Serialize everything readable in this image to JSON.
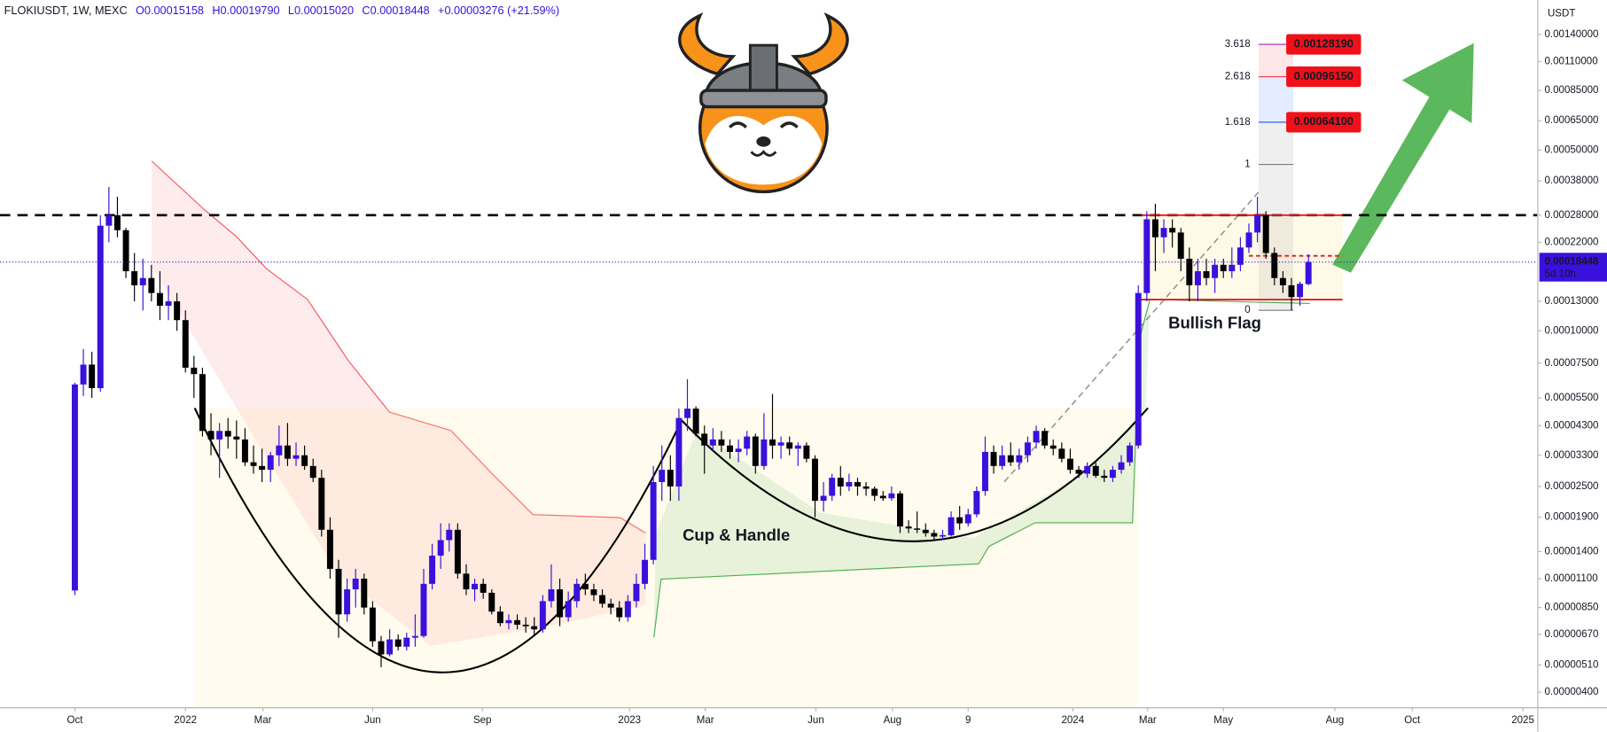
{
  "chart_data": {
    "type": "candlestick",
    "symbol": "FLOKIUSDT, 1W, MEXC",
    "header_values": [
      "O0.00015158",
      "H0.00019790",
      "L0.00015020",
      "C0.00018448",
      "+0.00003276 (+21.59%)"
    ],
    "currency": "USDT",
    "log_scale": true,
    "grid": false,
    "up_color": "#3a10dc",
    "down_color": "#000000",
    "ylim": [
      3.5e-06,
      0.0019
    ],
    "yticks": [
      {
        "value": 0.0014,
        "label": "0.00140000"
      },
      {
        "value": 0.0011,
        "label": "0.00110000"
      },
      {
        "value": 0.00085,
        "label": "0.00085000"
      },
      {
        "value": 0.00065,
        "label": "0.00065000"
      },
      {
        "value": 0.0005,
        "label": "0.00050000"
      },
      {
        "value": 0.00038,
        "label": "0.00038000"
      },
      {
        "value": 0.00028,
        "label": "0.00028000"
      },
      {
        "value": 0.00022,
        "label": "0.00022000"
      },
      {
        "value": 0.00013,
        "label": "0.00013000"
      },
      {
        "value": 0.0001,
        "label": "0.00010000"
      },
      {
        "value": 7.5e-05,
        "label": "0.00007500"
      },
      {
        "value": 5.5e-05,
        "label": "0.00005500"
      },
      {
        "value": 4.3e-05,
        "label": "0.00004300"
      },
      {
        "value": 3.3e-05,
        "label": "0.00003300"
      },
      {
        "value": 2.5e-05,
        "label": "0.00002500"
      },
      {
        "value": 1.9e-05,
        "label": "0.00001900"
      },
      {
        "value": 1.4e-05,
        "label": "0.00001400"
      },
      {
        "value": 1.1e-05,
        "label": "0.00001100"
      },
      {
        "value": 8.5e-06,
        "label": "0.00000850"
      },
      {
        "value": 6.7e-06,
        "label": "0.00000670"
      },
      {
        "value": 5.1e-06,
        "label": "0.00000510"
      },
      {
        "value": 4e-06,
        "label": "0.00000400"
      }
    ],
    "xlim": [
      -8.8,
      171.9
    ],
    "xticks": [
      {
        "value": 0,
        "label": "Oct"
      },
      {
        "value": 13,
        "label": "2022"
      },
      {
        "value": 22.1,
        "label": "Mar"
      },
      {
        "value": 35,
        "label": "Jun"
      },
      {
        "value": 47.9,
        "label": "Sep"
      },
      {
        "value": 65.2,
        "label": "2023"
      },
      {
        "value": 74.1,
        "label": "Mar"
      },
      {
        "value": 87.1,
        "label": "Jun"
      },
      {
        "value": 96.1,
        "label": "Aug"
      },
      {
        "value": 105,
        "label": "9"
      },
      {
        "value": 117.3,
        "label": "2024"
      },
      {
        "value": 126.1,
        "label": "Mar"
      },
      {
        "value": 135,
        "label": "May"
      },
      {
        "value": 148.1,
        "label": "Aug"
      },
      {
        "value": 157.2,
        "label": "Oct"
      },
      {
        "value": 170.2,
        "label": "2025"
      }
    ],
    "open": [
      9.9e-06,
      6.2e-05,
      7.4e-05,
      6e-05,
      0.000255,
      0.00028,
      0.000245,
      0.00017,
      0.00015,
      0.00016,
      0.00014,
      0.000125,
      0.00013,
      0.00011,
      7.2e-05,
      6.8e-05,
      4.1e-05,
      3.8e-05,
      4.1e-05,
      3.9e-05,
      3.8e-05,
      3.1e-05,
      3e-05,
      2.9e-05,
      3.3e-05,
      3.6e-05,
      3.2e-05,
      3.3e-05,
      3e-05,
      2.7e-05,
      1.7e-05,
      1.2e-05,
      8e-06,
      1e-05,
      1.1e-05,
      8.5e-06,
      6.3e-06,
      5.6e-06,
      6.4e-06,
      6e-06,
      6.5e-06,
      6.6e-06,
      1.05e-05,
      1.35e-05,
      1.55e-05,
      1.7e-05,
      1.15e-05,
      1e-05,
      1.05e-05,
      9.7e-06,
      8.2e-06,
      7.4e-06,
      7.6e-06,
      7.3e-06,
      7.2e-06,
      7e-06,
      9e-06,
      1e-05,
      7.8e-06,
      9e-06,
      1.05e-05,
      1e-05,
      9.5e-06,
      8.8e-06,
      8.5e-06,
      7.8e-06,
      9e-06,
      1.05e-05,
      1.3e-05,
      2.6e-05,
      2.9e-05,
      2.5e-05,
      4.6e-05,
      5e-05,
      4e-05,
      3.6e-05,
      3.8e-05,
      3.6e-05,
      3.4e-05,
      3.5e-05,
      3.9e-05,
      3e-05,
      3.8e-05,
      3.6e-05,
      3.7e-05,
      3.5e-05,
      3.6e-05,
      3.2e-05,
      2.2e-05,
      2.3e-05,
      2.7e-05,
      2.5e-05,
      2.6e-05,
      2.5e-05,
      2.45e-05,
      2.3e-05,
      2.25e-05,
      2.35e-05,
      1.75e-05,
      1.72e-05,
      1.7e-05,
      1.65e-05,
      1.6e-05,
      1.62e-05,
      1.9e-05,
      1.8e-05,
      1.95e-05,
      2.4e-05,
      3.4e-05,
      3e-05,
      3.3e-05,
      3.1e-05,
      3.3e-05,
      3.7e-05,
      4.1e-05,
      3.6e-05,
      3.5e-05,
      3.2e-05,
      2.9e-05,
      2.8e-05,
      3e-05,
      2.75e-05,
      2.7e-05,
      2.9e-05,
      3.1e-05,
      3.6e-05,
      0.00014,
      0.00027,
      0.00023,
      0.00025,
      0.00024,
      0.00019,
      0.00015,
      0.00017,
      0.00016,
      0.00018,
      0.00017,
      0.00018,
      0.00021,
      0.00024,
      0.00028,
      0.0002,
      0.00016,
      0.00015,
      0.000135,
      0.00015158
    ],
    "high": [
      6.3e-05,
      8.5e-05,
      8.3e-05,
      0.00028,
      0.00036,
      0.00033,
      0.00025,
      0.0002,
      0.00019,
      0.00018,
      0.00017,
      0.00015,
      0.00014,
      0.00012,
      8e-05,
      7.2e-05,
      4.8e-05,
      4.4e-05,
      4.6e-05,
      4.5e-05,
      4.2e-05,
      3.6e-05,
      3.5e-05,
      3.4e-05,
      4.3e-05,
      4.4e-05,
      3.7e-05,
      3.6e-05,
      3.2e-05,
      2.9e-05,
      1.9e-05,
      1.3e-05,
      1.1e-05,
      1.2e-05,
      1.15e-05,
      9e-06,
      6.6e-06,
      7e-06,
      6.7e-06,
      6.8e-06,
      8e-06,
      1.2e-05,
      1.5e-05,
      1.8e-05,
      1.8e-05,
      1.8e-05,
      1.25e-05,
      1.1e-05,
      1.1e-05,
      1e-05,
      8.6e-06,
      8e-06,
      8e-06,
      7.8e-06,
      7.8e-06,
      9.5e-06,
      1.25e-05,
      1.1e-05,
      9.8e-06,
      1.1e-05,
      1.15e-05,
      1.05e-05,
      1e-05,
      9.2e-06,
      9e-06,
      9.5e-06,
      1.15e-05,
      1.5e-05,
      3e-05,
      3.6e-05,
      3.3e-05,
      5e-05,
      6.5e-05,
      5.1e-05,
      4.3e-05,
      4.2e-05,
      4.1e-05,
      3.8e-05,
      3.8e-05,
      4.1e-05,
      4e-05,
      4.8e-05,
      5.7e-05,
      3.9e-05,
      3.9e-05,
      3.7e-05,
      3.7e-05,
      3.3e-05,
      2.6e-05,
      2.8e-05,
      3e-05,
      2.8e-05,
      2.7e-05,
      2.6e-05,
      2.5e-05,
      2.4e-05,
      2.5e-05,
      2.4e-05,
      1.85e-05,
      2e-05,
      1.8e-05,
      1.7e-05,
      1.7e-05,
      2e-05,
      2.1e-05,
      2.05e-05,
      2.5e-05,
      3.9e-05,
      3.6e-05,
      3.6e-05,
      3.7e-05,
      3.5e-05,
      3.9e-05,
      4.3e-05,
      4.2e-05,
      3.8e-05,
      3.7e-05,
      3.5e-05,
      3e-05,
      3.1e-05,
      3.1e-05,
      2.9e-05,
      3e-05,
      3.3e-05,
      3.7e-05,
      0.00015,
      0.00029,
      0.00031,
      0.00027,
      0.00027,
      0.00025,
      0.00021,
      0.00019,
      0.00019,
      0.00019,
      0.00019,
      0.00021,
      0.00023,
      0.00026,
      0.00033,
      0.00029,
      0.00021,
      0.00017,
      0.00016,
      0.000155,
      0.0001979
    ],
    "low": [
      9.5e-06,
      5.6e-05,
      5.5e-05,
      5.8e-05,
      0.00022,
      0.00023,
      0.00016,
      0.00013,
      0.00012,
      0.00013,
      0.00011,
      0.00011,
      0.0001,
      6.9e-05,
      5.5e-05,
      3.9e-05,
      3.3e-05,
      2.7e-05,
      3.5e-05,
      3.2e-05,
      3e-05,
      2.8e-05,
      2.6e-05,
      2.6e-05,
      3e-05,
      3e-05,
      3e-05,
      2.9e-05,
      2.6e-05,
      1.6e-05,
      1.1e-05,
      6.5e-06,
      7.5e-06,
      8.5e-06,
      8e-06,
      6e-06,
      5e-06,
      5.5e-06,
      5.8e-06,
      5.8e-06,
      6e-06,
      6.5e-06,
      1e-05,
      1.2e-05,
      1.4e-05,
      1.1e-05,
      9.5e-06,
      9e-06,
      9.2e-06,
      8e-06,
      7.2e-06,
      7e-06,
      7e-06,
      6.8e-06,
      6.6e-06,
      6.8e-06,
      8.5e-06,
      7.2e-06,
      7.5e-06,
      8.5e-06,
      9.5e-06,
      9e-06,
      8.5e-06,
      8e-06,
      7.5e-06,
      7.5e-06,
      8.5e-06,
      1e-05,
      1.25e-05,
      2.2e-05,
      2.2e-05,
      2.2e-05,
      4.1e-05,
      3.9e-05,
      2.8e-05,
      3.4e-05,
      3.4e-05,
      3.2e-05,
      3.1e-05,
      3.3e-05,
      2.8e-05,
      2.9e-05,
      3.2e-05,
      3.2e-05,
      3.3e-05,
      3e-05,
      3.1e-05,
      1.9e-05,
      2e-05,
      2.2e-05,
      2.3e-05,
      2.4e-05,
      2.3e-05,
      2.3e-05,
      2.2e-05,
      2.2e-05,
      2.2e-05,
      1.65e-05,
      1.65e-05,
      1.65e-05,
      1.6e-05,
      1.55e-05,
      1.55e-05,
      1.6e-05,
      1.7e-05,
      1.75e-05,
      1.9e-05,
      2.3e-05,
      2.8e-05,
      2.9e-05,
      3e-05,
      2.9e-05,
      3.1e-05,
      3.5e-05,
      3.5e-05,
      3.3e-05,
      3.1e-05,
      2.8e-05,
      2.7e-05,
      2.7e-05,
      2.7e-05,
      2.6e-05,
      2.6e-05,
      2.8e-05,
      3e-05,
      3.5e-05,
      0.00013,
      0.00017,
      0.0002,
      0.00021,
      0.00017,
      0.00013,
      0.00013,
      0.00015,
      0.00014,
      0.00016,
      0.00016,
      0.00017,
      0.0002,
      0.00022,
      0.00019,
      0.00015,
      0.00014,
      0.00012,
      0.000125,
      0.0001502
    ],
    "close": [
      6.2e-05,
      7.4e-05,
      6e-05,
      0.000255,
      0.00028,
      0.000245,
      0.00017,
      0.00015,
      0.00016,
      0.00014,
      0.000125,
      0.00013,
      0.00011,
      7.2e-05,
      6.8e-05,
      4.1e-05,
      3.8e-05,
      4.1e-05,
      3.9e-05,
      3.8e-05,
      3.1e-05,
      3e-05,
      2.9e-05,
      3.3e-05,
      3.6e-05,
      3.2e-05,
      3.3e-05,
      3e-05,
      2.7e-05,
      1.7e-05,
      1.2e-05,
      8e-06,
      1e-05,
      1.1e-05,
      8.5e-06,
      6.3e-06,
      5.6e-06,
      6.4e-06,
      6e-06,
      6.5e-06,
      6.6e-06,
      1.05e-05,
      1.35e-05,
      1.55e-05,
      1.7e-05,
      1.15e-05,
      1e-05,
      1.05e-05,
      9.7e-06,
      8.2e-06,
      7.4e-06,
      7.6e-06,
      7.3e-06,
      7.2e-06,
      7e-06,
      9e-06,
      1e-05,
      7.8e-06,
      9e-06,
      1.05e-05,
      1e-05,
      9.5e-06,
      8.8e-06,
      8.5e-06,
      7.8e-06,
      9e-06,
      1.05e-05,
      1.3e-05,
      2.6e-05,
      2.9e-05,
      2.5e-05,
      4.6e-05,
      5e-05,
      4e-05,
      3.6e-05,
      3.8e-05,
      3.6e-05,
      3.4e-05,
      3.5e-05,
      3.9e-05,
      3e-05,
      3.8e-05,
      3.6e-05,
      3.7e-05,
      3.5e-05,
      3.6e-05,
      3.2e-05,
      2.2e-05,
      2.3e-05,
      2.7e-05,
      2.5e-05,
      2.6e-05,
      2.5e-05,
      2.45e-05,
      2.3e-05,
      2.25e-05,
      2.35e-05,
      1.75e-05,
      1.72e-05,
      1.7e-05,
      1.65e-05,
      1.6e-05,
      1.62e-05,
      1.9e-05,
      1.8e-05,
      1.95e-05,
      2.4e-05,
      3.4e-05,
      3e-05,
      3.3e-05,
      3.1e-05,
      3.3e-05,
      3.7e-05,
      4.1e-05,
      3.6e-05,
      3.5e-05,
      3.2e-05,
      2.9e-05,
      2.8e-05,
      3e-05,
      2.75e-05,
      2.7e-05,
      2.9e-05,
      3.1e-05,
      3.6e-05,
      0.00014,
      0.00027,
      0.00023,
      0.00025,
      0.00024,
      0.00019,
      0.00015,
      0.00017,
      0.00016,
      0.00018,
      0.00017,
      0.00018,
      0.00021,
      0.00024,
      0.00028,
      0.0002,
      0.00016,
      0.00015,
      0.000135,
      0.000152,
      0.00018448
    ],
    "last_price": 0.00018448,
    "last_price_label": "0.00018448",
    "countdown": "5d 10h",
    "levels": [
      {
        "price": 0.00028,
        "color": "#000000",
        "dashed": true
      },
      {
        "price": 0.00028,
        "color": "#e8151b",
        "dashed": false,
        "from": 125.3,
        "to": 149
      },
      {
        "price": 0.000132,
        "color": "#e8151b",
        "dashed": false,
        "from": 125.3,
        "to": 149
      },
      {
        "price": 0.000195,
        "color": "#e8151b",
        "dashed": true,
        "from": 138,
        "to": 149
      }
    ],
    "fib_levels": [
      {
        "level": 3.618,
        "price": 0.0012819,
        "price_label": "0.00128190",
        "color": "#9c27b0"
      },
      {
        "level": 2.618,
        "price": 0.0009615,
        "price_label": "0.00096150",
        "color": "#f23645"
      },
      {
        "level": 1.618,
        "price": 0.000641,
        "price_label": "0.00064100",
        "color": "#2962ff"
      },
      {
        "level": 1,
        "price": 0.00044,
        "color": "#787b86"
      },
      {
        "level": 0,
        "price": 0.00012,
        "color": "#787b86"
      }
    ],
    "annotations": [
      "Cup & Handle",
      "Bullish Flag"
    ]
  }
}
